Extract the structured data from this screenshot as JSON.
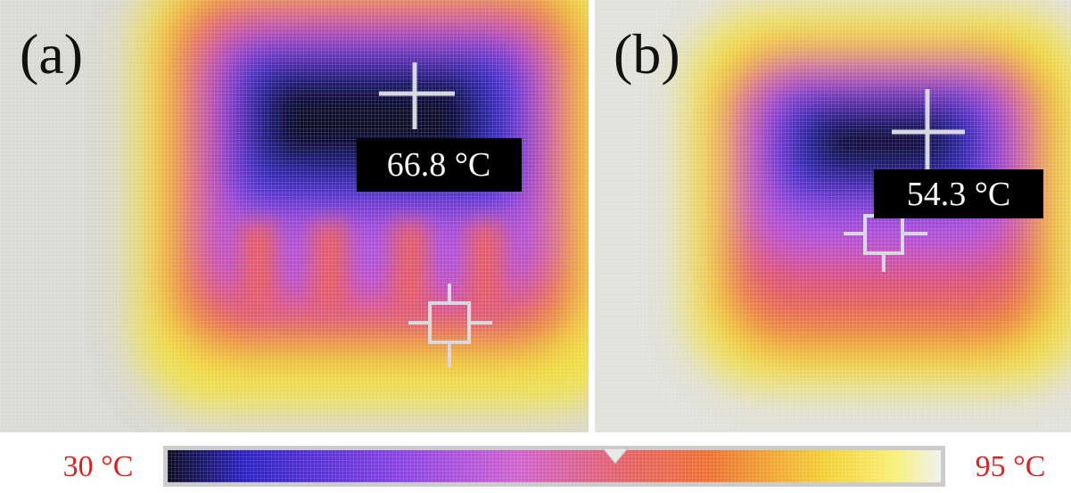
{
  "panels": [
    {
      "label": "(a)",
      "reading": "66.8 °C"
    },
    {
      "label": "(b)",
      "reading": "54.3 °C"
    }
  ],
  "colorbar": {
    "min_label": "30 °C",
    "max_label": "95 °C"
  }
}
